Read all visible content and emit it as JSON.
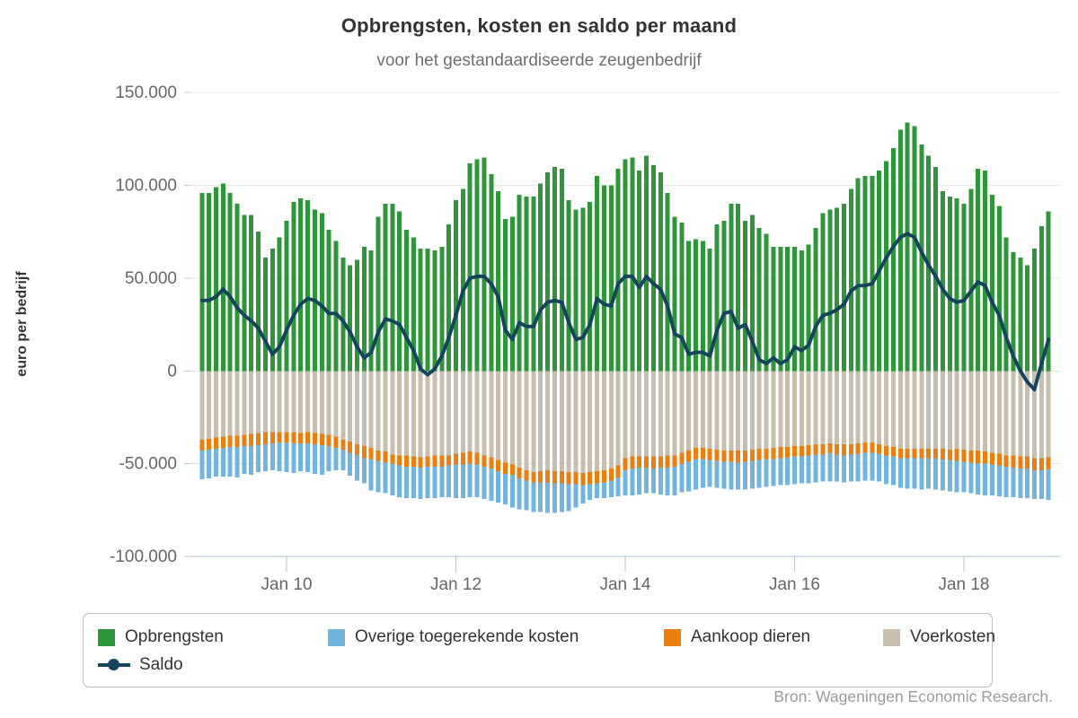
{
  "title": "Opbrengsten, kosten en saldo per maand",
  "subtitle": "voor het gestandaardiseerde zeugenbedrijf",
  "y_axis_title": "euro per bedrijf",
  "source": "Bron: Wageningen Economic Research.",
  "colors": {
    "opbrengsten": "#2e9639",
    "voerkosten": "#c7beae",
    "aankoop_dieren": "#ec7e0e",
    "overige_kosten": "#72b4e0",
    "saldo_line": "#15455c",
    "gridline": "#e6e6e6",
    "axis_line": "#b3c3d3",
    "axis_label": "#666666"
  },
  "legend": {
    "items": [
      {
        "label": "Opbrengsten",
        "color": "#2e9639"
      },
      {
        "label": "Overige toegerekende kosten",
        "color": "#72b4e0"
      },
      {
        "label": "Aankoop dieren",
        "color": "#ec7e0e"
      },
      {
        "label": "Voerkosten",
        "color": "#c7beae"
      }
    ],
    "saldo_label": "Saldo"
  },
  "chart_data": {
    "type": "bar",
    "subtype": "stacked-bars-with-line",
    "title": "Opbrengsten, kosten en saldo per maand",
    "subtitle": "voor het gestandaardiseerde zeugenbedrijf",
    "ylabel": "euro per bedrijf",
    "values_unit": "duizend euro (×1000)",
    "x_interval": "month",
    "x_start": "Jan 2009",
    "x_end": "Jan 2019",
    "n_months": 121,
    "ylim": [
      -100,
      150
    ],
    "grid": "horizontal",
    "legend_position": "bottom",
    "y_ticks": {
      "values": [
        150,
        100,
        50,
        0,
        -50,
        -100
      ],
      "labels": [
        "150.000",
        "100.000",
        "50.000",
        "0",
        "-50.000",
        "-100.000"
      ]
    },
    "x_ticks": {
      "month_indices": [
        12,
        36,
        60,
        84,
        108
      ],
      "labels": [
        "Jan 10",
        "Jan 12",
        "Jan 14",
        "Jan 16",
        "Jan 18"
      ]
    },
    "series": [
      {
        "name": "Opbrengsten",
        "role": "bar-positive",
        "color": "#2e9639",
        "values": [
          96,
          96,
          99,
          101,
          96,
          90,
          84,
          84,
          75,
          61,
          66,
          72,
          81,
          91,
          93,
          92,
          87,
          85,
          76,
          70,
          61,
          57,
          60,
          67,
          65,
          83,
          90,
          90,
          86,
          76,
          72,
          66,
          66,
          65,
          67,
          79,
          92,
          98,
          112,
          114,
          115,
          106,
          97,
          82,
          83,
          95,
          94,
          94,
          101,
          107,
          110,
          109,
          92,
          87,
          88,
          91,
          105,
          100,
          100,
          109,
          114,
          115,
          108,
          116,
          111,
          107,
          96,
          83,
          80,
          70,
          71,
          70,
          66,
          79,
          81,
          90,
          90,
          81,
          84,
          77,
          74,
          67,
          67,
          67,
          67,
          65,
          68,
          77,
          85,
          87,
          88,
          90,
          98,
          104,
          105,
          105,
          108,
          113,
          120,
          130,
          134,
          132,
          122,
          116,
          110,
          97,
          94,
          93,
          90,
          98,
          109,
          108,
          95,
          89,
          72,
          64,
          61,
          57,
          66,
          78,
          86
        ]
      },
      {
        "name": "Voerkosten",
        "role": "bar-negative-stack-1",
        "color": "#c7beae",
        "values": [
          37,
          36.5,
          36,
          35.5,
          35,
          35,
          34.5,
          34,
          33.5,
          33,
          33,
          33,
          33,
          33,
          33.5,
          33,
          33.5,
          34,
          34.5,
          35.5,
          37,
          38,
          39.5,
          40.5,
          41.5,
          43,
          43.5,
          45,
          45.5,
          45.5,
          46,
          46.5,
          46,
          45.5,
          45.5,
          45.5,
          44.5,
          44,
          43.5,
          44,
          45.5,
          46.5,
          48,
          49.5,
          50.5,
          52,
          53.5,
          54.5,
          54,
          53.5,
          54,
          54,
          54.5,
          54.5,
          55,
          54.5,
          54,
          53.5,
          52.5,
          51,
          47,
          46,
          46,
          46,
          46,
          46,
          45.5,
          45.5,
          44,
          43,
          41.5,
          41.5,
          42,
          42.5,
          43,
          43,
          43,
          43,
          42.5,
          42,
          42,
          41.5,
          41,
          41,
          40.5,
          40.5,
          40,
          39.5,
          39.5,
          39,
          39.5,
          39.5,
          39.5,
          39,
          38.5,
          38.5,
          39.5,
          40.5,
          41,
          42,
          42,
          42,
          42,
          42,
          42,
          42,
          42.5,
          42,
          42.5,
          43,
          43,
          43.5,
          44,
          44.5,
          45.5,
          45.5,
          46,
          46,
          47,
          47,
          46.5
        ]
      },
      {
        "name": "Aankoop dieren",
        "role": "bar-negative-stack-2",
        "color": "#ec7e0e",
        "values": [
          6,
          6,
          6,
          6,
          6,
          6,
          6,
          6.5,
          6.5,
          6.5,
          6,
          5.5,
          5.5,
          6,
          5.5,
          6,
          6,
          6,
          6,
          6,
          5.5,
          6,
          5.5,
          6.5,
          6,
          5.5,
          6,
          5,
          5.5,
          6,
          5.5,
          5.5,
          5.5,
          6,
          6,
          5.5,
          6,
          6.5,
          6.5,
          6.5,
          6,
          6,
          6,
          6,
          5.5,
          6,
          5.5,
          5.5,
          6,
          6.5,
          6.5,
          6.5,
          6.5,
          6.5,
          6.5,
          6.5,
          6.5,
          6.5,
          6.5,
          6.5,
          6.5,
          6.5,
          6,
          6,
          6.5,
          6,
          6.5,
          6,
          6,
          6,
          6,
          6,
          6,
          6,
          6,
          6,
          6.5,
          6,
          6,
          6,
          5.5,
          6,
          6,
          5.5,
          5.5,
          5.5,
          5.5,
          5.5,
          5.5,
          5,
          5.5,
          6,
          5.5,
          5.5,
          5.5,
          5.5,
          5,
          5,
          5,
          5,
          5,
          5,
          5,
          5,
          5,
          5.5,
          5.5,
          6.5,
          6.5,
          6.5,
          7,
          6.5,
          6.5,
          6.5,
          6,
          6.5,
          6.5,
          6.5,
          6.5,
          6.5,
          6.5
        ]
      },
      {
        "name": "Overige toegerekende kosten",
        "role": "bar-negative-stack-3",
        "color": "#72b4e0",
        "values": [
          15.5,
          15.5,
          15,
          15.5,
          16,
          16.5,
          15,
          15.5,
          14.5,
          14.5,
          14.5,
          15.5,
          16,
          16,
          15,
          15.5,
          16,
          16,
          13.5,
          12,
          11,
          12.5,
          14,
          13.5,
          17,
          17,
          16.5,
          17,
          17,
          17,
          17,
          17,
          17,
          17,
          16.5,
          17,
          18,
          18,
          18,
          17.5,
          17.5,
          17.5,
          17,
          16.5,
          17.5,
          16.5,
          16,
          16,
          16,
          16.5,
          16,
          15.5,
          14.5,
          12.5,
          10,
          8.5,
          8,
          8.5,
          9,
          10,
          13.5,
          14.5,
          14.5,
          14,
          13.5,
          14.5,
          15,
          15.5,
          15.5,
          16,
          16.5,
          15.5,
          14.5,
          14.5,
          14.5,
          15,
          14.5,
          15,
          15,
          15,
          15,
          14.5,
          14.5,
          15,
          15,
          14.5,
          15,
          15,
          14.5,
          15.5,
          14.5,
          14.5,
          14.5,
          15,
          15,
          15,
          15,
          15.5,
          15.5,
          16,
          16.5,
          16.5,
          17,
          16.5,
          17,
          17,
          17,
          17,
          16.5,
          16.5,
          16.5,
          17,
          16.5,
          16.5,
          16.5,
          16,
          16,
          16,
          15.5,
          15.5,
          16.5
        ]
      },
      {
        "name": "Saldo",
        "role": "line",
        "color": "#15455c",
        "values": [
          38,
          38,
          40,
          44,
          40,
          34,
          30,
          27,
          23,
          16,
          9,
          13,
          22,
          30,
          36,
          39,
          38,
          35,
          31,
          31,
          27,
          21,
          13,
          7,
          10,
          21,
          28,
          27,
          25,
          18,
          11,
          1,
          -2,
          1,
          8,
          18,
          30,
          43,
          50,
          51,
          51,
          47,
          40,
          22,
          17,
          26,
          24,
          24,
          33,
          37,
          38,
          37,
          26,
          17,
          18,
          25,
          39,
          36,
          35,
          47,
          51,
          51,
          45,
          51,
          47,
          44,
          35,
          20,
          18,
          9,
          10,
          10,
          8,
          22,
          31,
          32,
          23,
          25,
          16,
          6,
          4,
          7,
          4,
          6,
          13,
          11,
          14,
          24,
          30,
          31,
          33,
          36,
          43,
          46,
          46,
          47,
          54,
          61,
          67,
          72,
          74,
          72,
          64,
          57,
          51,
          44,
          39,
          37,
          38,
          43,
          48,
          46,
          37,
          30,
          18,
          8,
          0,
          -6,
          -10,
          4,
          17
        ]
      }
    ]
  }
}
